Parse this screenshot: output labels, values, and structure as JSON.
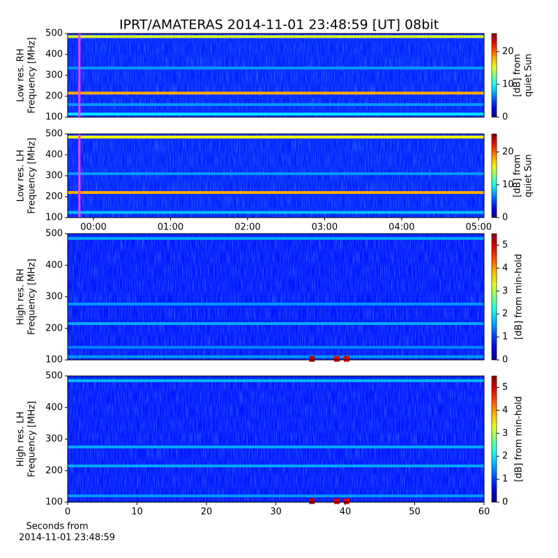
{
  "title": "IPRT/AMATERAS 2014-11-01 23:48:59 [UT]   08bit",
  "chart_data": [
    {
      "type": "heatmap",
      "ylabel": [
        "Low res. RH",
        "Frequency [MHz]"
      ],
      "xlim": [
        -0.335,
        5.07
      ],
      "ylim": [
        100,
        500
      ],
      "yticks": [
        100,
        200,
        300,
        400,
        500
      ],
      "clim": [
        0,
        25.5
      ],
      "cticks": [
        0,
        10,
        20
      ],
      "clabel": [
        "[dB] from",
        "quiet Sun"
      ],
      "cursor": -0.183,
      "background": 4,
      "bands": [
        {
          "freq": 485,
          "value": 15
        },
        {
          "freq": 215,
          "value": 18
        },
        {
          "freq": 115,
          "value": 9
        },
        {
          "freq": 335,
          "value": 7
        },
        {
          "freq": 160,
          "value": 7
        }
      ]
    },
    {
      "type": "heatmap",
      "ylabel": [
        "Low res. LH",
        "Frequency [MHz]"
      ],
      "xlim": [
        -0.335,
        5.07
      ],
      "ylim": [
        100,
        500
      ],
      "yticks": [
        100,
        200,
        300,
        400,
        500
      ],
      "xticks": [
        {
          "value": 0,
          "label": "00:00"
        },
        {
          "value": 1,
          "label": "01:00"
        },
        {
          "value": 2,
          "label": "02:00"
        },
        {
          "value": 3,
          "label": "03:00"
        },
        {
          "value": 4,
          "label": "04:00"
        },
        {
          "value": 5,
          "label": "05:00"
        }
      ],
      "clim": [
        0,
        25.5
      ],
      "cticks": [
        0,
        10,
        20
      ],
      "clabel": [
        "[dB] from",
        "quiet Sun"
      ],
      "cursor": -0.183,
      "background": 4,
      "bands": [
        {
          "freq": 485,
          "value": 16
        },
        {
          "freq": 220,
          "value": 18
        },
        {
          "freq": 125,
          "value": 8
        },
        {
          "freq": 310,
          "value": 7
        }
      ]
    },
    {
      "type": "heatmap",
      "ylabel": [
        "High res. RH",
        "Frequency [MHz]"
      ],
      "xlim": [
        0,
        60
      ],
      "ylim": [
        100,
        500
      ],
      "yticks": [
        100,
        200,
        300,
        400,
        500
      ],
      "clim": [
        0,
        5.5
      ],
      "cticks": [
        0,
        1,
        2,
        3,
        4,
        5
      ],
      "clabel": [
        "[dB] from min-hold"
      ],
      "background": 0.8,
      "bands": [
        {
          "freq": 485,
          "value": 1.6
        },
        {
          "freq": 277,
          "value": 1.5
        },
        {
          "freq": 215,
          "value": 1.6
        },
        {
          "freq": 140,
          "value": 1.4
        },
        {
          "freq": 110,
          "value": 1.5
        }
      ],
      "bursts": [
        {
          "x": 35.2,
          "value": 5.2
        },
        {
          "x": 38.8,
          "value": 5
        },
        {
          "x": 40.2,
          "value": 5
        }
      ]
    },
    {
      "type": "heatmap",
      "ylabel": [
        "High res. LH",
        "Frequency [MHz]"
      ],
      "xlim": [
        0,
        60
      ],
      "ylim": [
        100,
        500
      ],
      "yticks": [
        100,
        200,
        300,
        400,
        500
      ],
      "xticks": [
        0,
        10,
        20,
        30,
        40,
        50,
        60
      ],
      "xlabel": [
        "Seconds from",
        "2014-11-01 23:48:59"
      ],
      "clim": [
        0,
        5.5
      ],
      "cticks": [
        0,
        1,
        2,
        3,
        4,
        5
      ],
      "clabel": [
        "[dB] from min-hold"
      ],
      "background": 0.8,
      "bands": [
        {
          "freq": 485,
          "value": 1.7
        },
        {
          "freq": 275,
          "value": 1.6
        },
        {
          "freq": 215,
          "value": 1.6
        },
        {
          "freq": 120,
          "value": 1.5
        }
      ],
      "bursts": [
        {
          "x": 35.2,
          "value": 5.2
        },
        {
          "x": 38.8,
          "value": 5
        },
        {
          "x": 40.2,
          "value": 5
        }
      ]
    }
  ]
}
